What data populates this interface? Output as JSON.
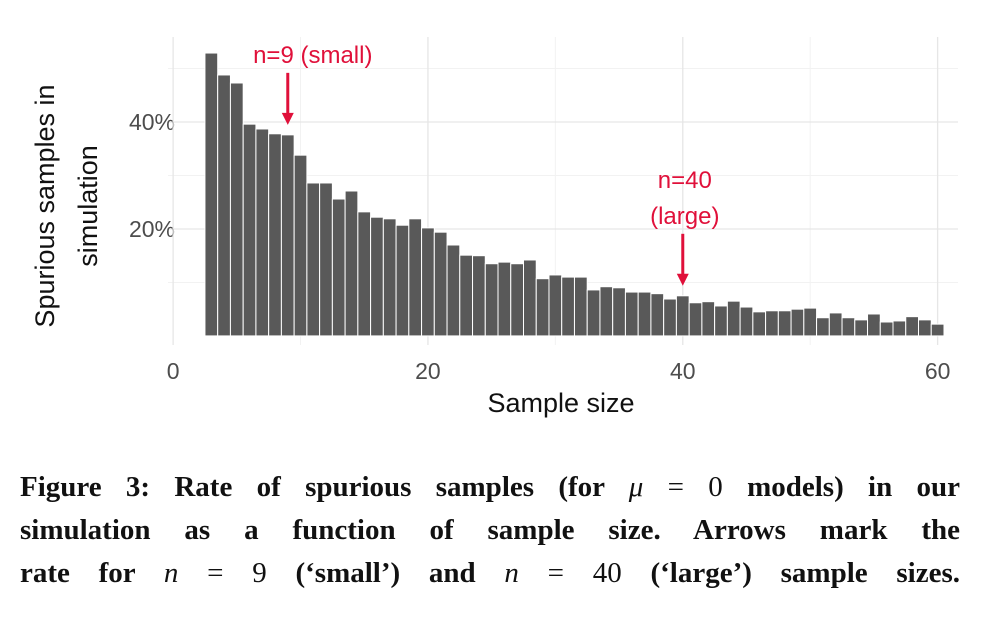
{
  "chart_data": {
    "type": "bar",
    "x_label": "Sample size",
    "y_label": [
      "Spurious samples in",
      "simulation"
    ],
    "x": [
      3,
      4,
      5,
      6,
      7,
      8,
      9,
      10,
      11,
      12,
      13,
      14,
      15,
      16,
      17,
      18,
      19,
      20,
      21,
      22,
      23,
      24,
      25,
      26,
      27,
      28,
      29,
      30,
      31,
      32,
      33,
      34,
      35,
      36,
      37,
      38,
      39,
      40,
      41,
      42,
      43,
      44,
      45,
      46,
      47,
      48,
      49,
      50,
      51,
      52,
      53,
      54,
      55,
      56,
      57,
      58,
      59,
      60
    ],
    "values": [
      52.9,
      48.8,
      47.3,
      39.6,
      38.7,
      37.8,
      37.6,
      33.8,
      28.6,
      28.6,
      25.6,
      27.1,
      23.2,
      22.2,
      21.9,
      20.7,
      21.9,
      20.2,
      19.4,
      17.0,
      15.1,
      15.0,
      13.5,
      13.8,
      13.5,
      14.2,
      10.7,
      11.4,
      11.0,
      11.0,
      8.6,
      9.2,
      9.0,
      8.2,
      8.2,
      7.9,
      6.9,
      7.5,
      6.2,
      6.4,
      5.6,
      6.5,
      5.4,
      4.5,
      4.7,
      4.7,
      5.0,
      5.2,
      3.4,
      4.3,
      3.4,
      3.0,
      4.1,
      2.6,
      2.8,
      3.6,
      3.0,
      2.2
    ],
    "color": "#595959",
    "xlim": [
      -0.4,
      61.6
    ],
    "ylim": [
      -1.7,
      55.9
    ],
    "xticks": [
      0,
      20,
      40,
      60
    ],
    "yticks": [
      {
        "value": 20,
        "label": "20%"
      },
      {
        "value": 40,
        "label": "40%"
      }
    ],
    "x_minor_ticks": [
      10,
      30,
      50
    ],
    "y_minor_ticks": [
      10,
      30,
      50
    ],
    "grid": true,
    "annotations": [
      {
        "text": [
          "n=9 (small)"
        ],
        "x": 9,
        "color": "#e0103a"
      },
      {
        "text": [
          "n=40",
          "(large)"
        ],
        "x": 40,
        "color": "#e0103a"
      }
    ]
  },
  "caption": [
    [
      {
        "text": "Figure 3: Rate of spurious samples (for ",
        "style": "b"
      },
      {
        "text": "μ",
        "style": "m"
      },
      {
        "text": " = 0 ",
        "style": "p"
      },
      {
        "text": "models) in our",
        "style": "b"
      }
    ],
    [
      {
        "text": "simulation as a function of sample size. Arrows mark the",
        "style": "b"
      }
    ],
    [
      {
        "text": "rate for ",
        "style": "b"
      },
      {
        "text": "n",
        "style": "m"
      },
      {
        "text": " = 9 ",
        "style": "p"
      },
      {
        "text": "(‘small’) and ",
        "style": "b"
      },
      {
        "text": "n",
        "style": "m"
      },
      {
        "text": " = 40 ",
        "style": "p"
      },
      {
        "text": "(‘large’) sample sizes.",
        "style": "b"
      }
    ]
  ]
}
